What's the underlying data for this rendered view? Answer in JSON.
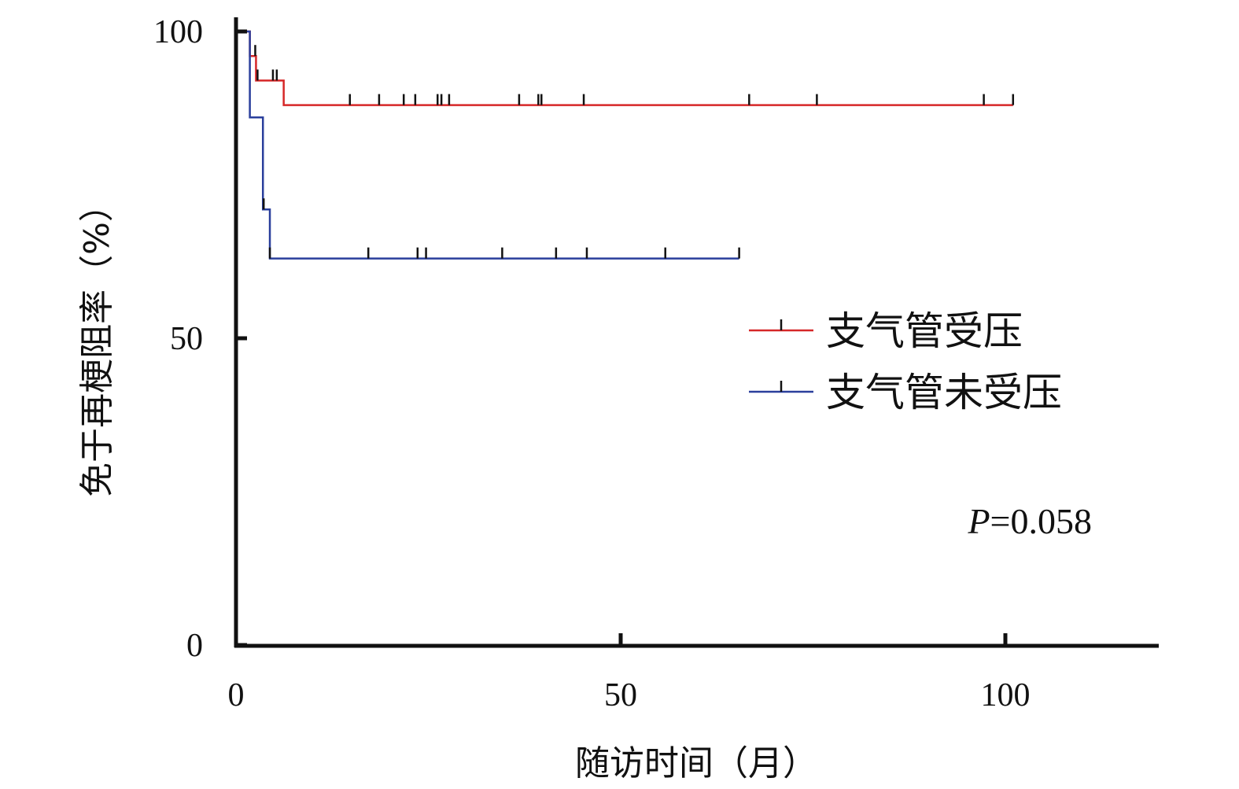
{
  "chart_data": {
    "type": "line",
    "xlabel": "随访时间（月）",
    "ylabel": "免于再梗阻率（%）",
    "xlim": [
      0,
      120
    ],
    "ylim": [
      0,
      100
    ],
    "x_ticks": [
      0,
      50,
      100
    ],
    "y_ticks": [
      0,
      50,
      100
    ],
    "annotation": {
      "p_label": "P",
      "p_value": "=0.058"
    },
    "legend_position": "right-middle",
    "series": [
      {
        "name": "支气管受压",
        "color": "#d62728",
        "steps": [
          [
            0,
            100
          ],
          [
            1.8,
            96
          ],
          [
            2.6,
            92
          ],
          [
            6.2,
            88
          ],
          [
            101,
            88
          ]
        ],
        "censored": [
          2.5,
          2.8,
          4.8,
          5.3,
          14.8,
          18.6,
          21.8,
          23.3,
          26.2,
          26.7,
          27.7,
          36.8,
          39.3,
          39.7,
          45.2,
          66.7,
          75.5,
          97.2,
          101
        ]
      },
      {
        "name": "支气管未受压",
        "color": "#2a3f9c",
        "steps": [
          [
            0,
            100
          ],
          [
            1.8,
            86
          ],
          [
            3.5,
            71
          ],
          [
            4.4,
            63
          ],
          [
            65.4,
            63
          ]
        ],
        "censored": [
          3.6,
          4.4,
          17.2,
          23.6,
          24.7,
          34.6,
          41.6,
          45.6,
          55.8,
          65.4
        ]
      }
    ]
  }
}
